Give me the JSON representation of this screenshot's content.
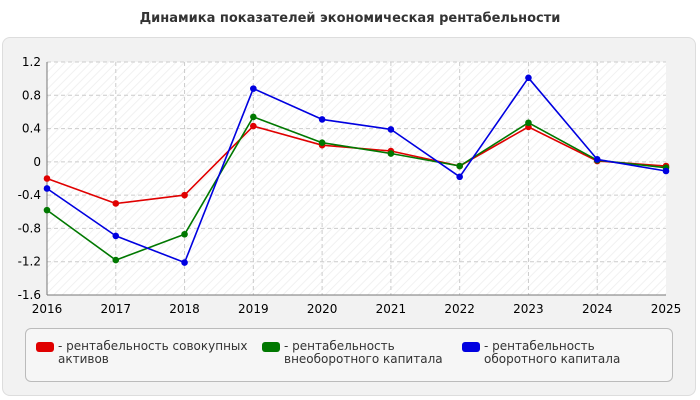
{
  "title": "Динамика показателей экономическая рентабельности",
  "chart_data": {
    "type": "line",
    "x": [
      "2016",
      "2017",
      "2018",
      "2019",
      "2020",
      "2021",
      "2022",
      "2023",
      "2024",
      "2025"
    ],
    "ylim": [
      -1.6,
      1.2
    ],
    "yticks": [
      1.2,
      0.8,
      0.4,
      0,
      -0.4,
      -0.8,
      -1.2,
      -1.6
    ],
    "ytick_labels": [
      "1.2",
      "0.8",
      "0.4",
      "0",
      "-0.4",
      "-0.8",
      "-1.2",
      "-1.6"
    ],
    "grid": true,
    "legend_position": "bottom",
    "series": [
      {
        "name": "- рентабельность совокупных активов",
        "color": "#e00000",
        "values": [
          -0.2,
          -0.5,
          -0.4,
          0.43,
          0.2,
          0.13,
          -0.05,
          0.42,
          0.01,
          -0.05
        ]
      },
      {
        "name": "- рентабельность внеоборотного капитала",
        "color": "#007800",
        "values": [
          -0.58,
          -1.18,
          -0.87,
          0.54,
          0.23,
          0.1,
          -0.05,
          0.47,
          0.02,
          -0.07
        ]
      },
      {
        "name": "- рентабельность оборотного капитала",
        "color": "#0000e0",
        "values": [
          -0.32,
          -0.89,
          -1.21,
          0.88,
          0.51,
          0.39,
          -0.18,
          1.01,
          0.03,
          -0.11
        ]
      }
    ]
  }
}
